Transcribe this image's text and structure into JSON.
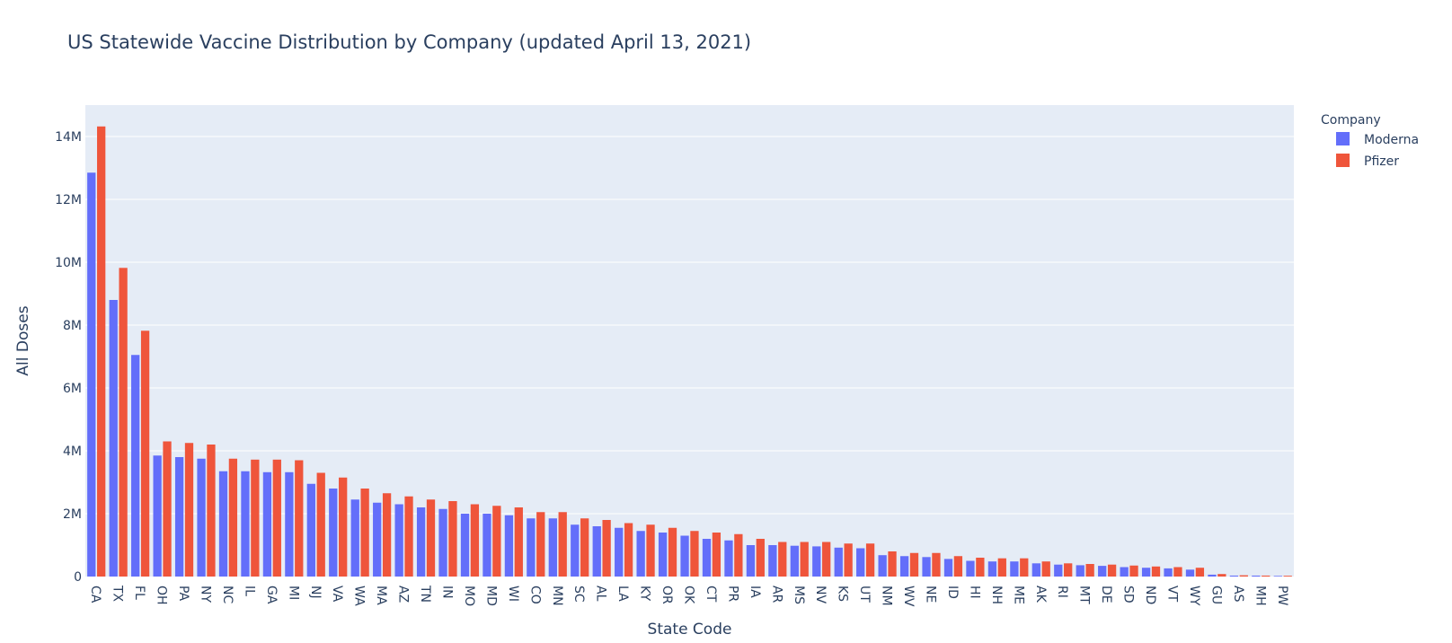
{
  "chart_data": {
    "type": "bar",
    "barmode": "group",
    "title": "US Statewide Vaccine Distribution by Company (updated April 13, 2021)",
    "xlabel": "State Code",
    "ylabel": "All Doses",
    "ylim": [
      0,
      15000000
    ],
    "yticks": [
      0,
      2000000,
      4000000,
      6000000,
      8000000,
      10000000,
      12000000,
      14000000
    ],
    "ytick_labels": [
      "0",
      "2M",
      "4M",
      "6M",
      "8M",
      "10M",
      "12M",
      "14M"
    ],
    "grid": true,
    "legend": {
      "title": "Company",
      "position": "top-right"
    },
    "categories": [
      "CA",
      "TX",
      "FL",
      "OH",
      "PA",
      "NY",
      "NC",
      "IL",
      "GA",
      "MI",
      "NJ",
      "VA",
      "WA",
      "MA",
      "AZ",
      "TN",
      "IN",
      "MO",
      "MD",
      "WI",
      "CO",
      "MN",
      "SC",
      "AL",
      "LA",
      "KY",
      "OR",
      "OK",
      "CT",
      "PR",
      "IA",
      "AR",
      "MS",
      "NV",
      "KS",
      "UT",
      "NM",
      "WV",
      "NE",
      "ID",
      "HI",
      "NH",
      "ME",
      "AK",
      "RI",
      "MT",
      "DE",
      "SD",
      "ND",
      "VT",
      "WY",
      "GU",
      "AS",
      "MH",
      "PW"
    ],
    "series": [
      {
        "name": "Moderna",
        "color": "#636efa",
        "values": [
          12850000,
          8800000,
          7050000,
          3850000,
          3800000,
          3750000,
          3350000,
          3350000,
          3320000,
          3320000,
          2950000,
          2800000,
          2450000,
          2350000,
          2300000,
          2200000,
          2150000,
          2000000,
          2000000,
          1950000,
          1850000,
          1850000,
          1650000,
          1600000,
          1550000,
          1450000,
          1400000,
          1300000,
          1200000,
          1150000,
          1000000,
          1000000,
          980000,
          960000,
          920000,
          900000,
          680000,
          650000,
          620000,
          560000,
          500000,
          480000,
          480000,
          420000,
          380000,
          360000,
          340000,
          300000,
          280000,
          260000,
          220000,
          60000,
          30000,
          30000,
          20000
        ]
      },
      {
        "name": "Pfizer",
        "color": "#ef553b",
        "values": [
          14320000,
          9820000,
          7820000,
          4300000,
          4250000,
          4200000,
          3750000,
          3720000,
          3720000,
          3700000,
          3300000,
          3150000,
          2800000,
          2650000,
          2550000,
          2450000,
          2400000,
          2300000,
          2250000,
          2200000,
          2050000,
          2050000,
          1850000,
          1800000,
          1700000,
          1650000,
          1550000,
          1450000,
          1400000,
          1350000,
          1200000,
          1100000,
          1100000,
          1100000,
          1050000,
          1050000,
          800000,
          750000,
          750000,
          650000,
          600000,
          580000,
          580000,
          480000,
          420000,
          400000,
          380000,
          350000,
          320000,
          300000,
          280000,
          80000,
          40000,
          30000,
          25000
        ]
      }
    ]
  }
}
